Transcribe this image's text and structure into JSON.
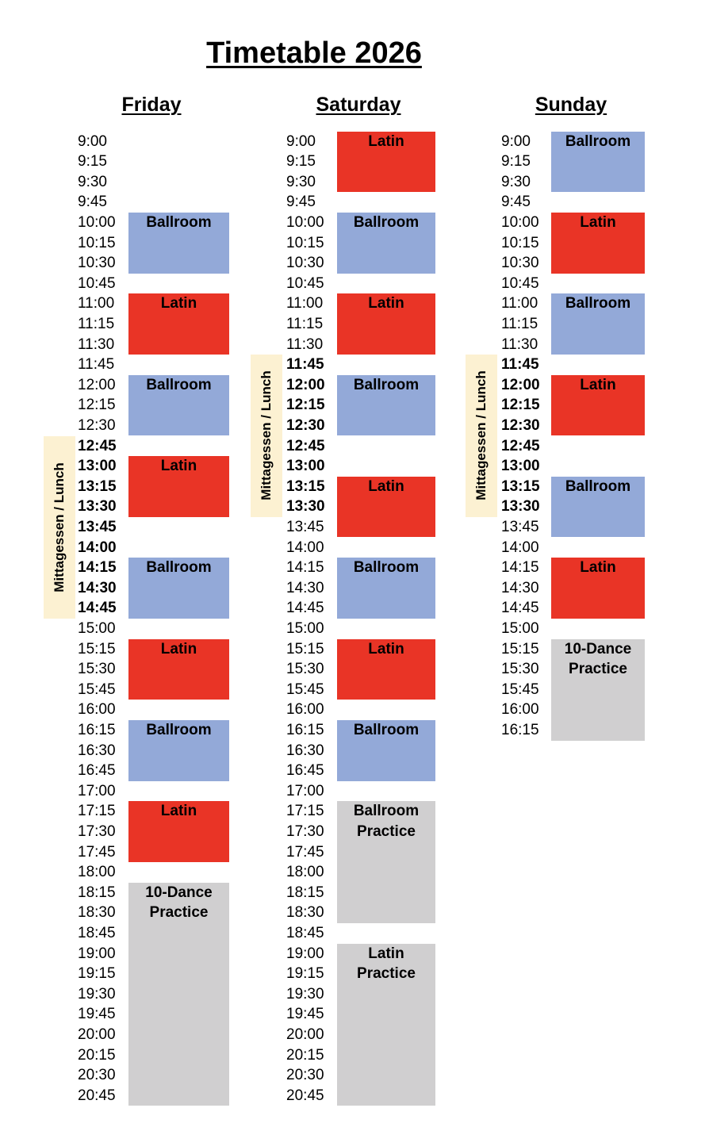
{
  "title": "Timetable 2026",
  "colors": {
    "ballroom": "#93a9d8",
    "latin": "#e93426",
    "practice": "#d0cfd0",
    "lunch": "#fcf1d2"
  },
  "days": [
    {
      "name": "Friday",
      "times": [
        "9:00",
        "9:15",
        "9:30",
        "9:45",
        "10:00",
        "10:15",
        "10:30",
        "10:45",
        "11:00",
        "11:15",
        "11:30",
        "11:45",
        "12:00",
        "12:15",
        "12:30",
        "12:45",
        "13:00",
        "13:15",
        "13:30",
        "13:45",
        "14:00",
        "14:15",
        "14:30",
        "14:45",
        "15:00",
        "15:15",
        "15:30",
        "15:45",
        "16:00",
        "16:15",
        "16:30",
        "16:45",
        "17:00",
        "17:15",
        "17:30",
        "17:45",
        "18:00",
        "18:15",
        "18:30",
        "18:45",
        "19:00",
        "19:15",
        "19:30",
        "19:45",
        "20:00",
        "20:15",
        "20:30",
        "20:45"
      ],
      "lunch": {
        "label": "Mittagessen / Lunch",
        "start": "12:45",
        "end": "14:45"
      },
      "blocks": [
        {
          "label": "Ballroom",
          "type": "ballroom",
          "start": "10:00",
          "end": "10:30"
        },
        {
          "label": "Latin",
          "type": "latin",
          "start": "11:00",
          "end": "11:30"
        },
        {
          "label": "Ballroom",
          "type": "ballroom",
          "start": "12:00",
          "end": "12:30"
        },
        {
          "label": "Latin",
          "type": "latin",
          "start": "13:00",
          "end": "13:30"
        },
        {
          "label": "Ballroom",
          "type": "ballroom",
          "start": "14:15",
          "end": "14:45"
        },
        {
          "label": "Latin",
          "type": "latin",
          "start": "15:15",
          "end": "15:45"
        },
        {
          "label": "Ballroom",
          "type": "ballroom",
          "start": "16:15",
          "end": "16:45"
        },
        {
          "label": "Latin",
          "type": "latin",
          "start": "17:15",
          "end": "17:45"
        },
        {
          "label": "10-Dance\nPractice",
          "type": "practice",
          "start": "18:15",
          "end": "20:45"
        }
      ]
    },
    {
      "name": "Saturday",
      "times": [
        "9:00",
        "9:15",
        "9:30",
        "9:45",
        "10:00",
        "10:15",
        "10:30",
        "10:45",
        "11:00",
        "11:15",
        "11:30",
        "11:45",
        "12:00",
        "12:15",
        "12:30",
        "12:45",
        "13:00",
        "13:15",
        "13:30",
        "13:45",
        "14:00",
        "14:15",
        "14:30",
        "14:45",
        "15:00",
        "15:15",
        "15:30",
        "15:45",
        "16:00",
        "16:15",
        "16:30",
        "16:45",
        "17:00",
        "17:15",
        "17:30",
        "17:45",
        "18:00",
        "18:15",
        "18:30",
        "18:45",
        "19:00",
        "19:15",
        "19:30",
        "19:45",
        "20:00",
        "20:15",
        "20:30",
        "20:45"
      ],
      "lunch": {
        "label": "Mittagessen / Lunch",
        "start": "11:45",
        "end": "13:30"
      },
      "blocks": [
        {
          "label": "Latin",
          "type": "latin",
          "start": "9:00",
          "end": "9:30"
        },
        {
          "label": "Ballroom",
          "type": "ballroom",
          "start": "10:00",
          "end": "10:30"
        },
        {
          "label": "Latin",
          "type": "latin",
          "start": "11:00",
          "end": "11:30"
        },
        {
          "label": "Ballroom",
          "type": "ballroom",
          "start": "12:00",
          "end": "12:30"
        },
        {
          "label": "Latin",
          "type": "latin",
          "start": "13:15",
          "end": "13:45"
        },
        {
          "label": "Ballroom",
          "type": "ballroom",
          "start": "14:15",
          "end": "14:45"
        },
        {
          "label": "Latin",
          "type": "latin",
          "start": "15:15",
          "end": "15:45"
        },
        {
          "label": "Ballroom",
          "type": "ballroom",
          "start": "16:15",
          "end": "16:45"
        },
        {
          "label": "Ballroom\nPractice",
          "type": "practice",
          "start": "17:15",
          "end": "18:30"
        },
        {
          "label": "Latin\nPractice",
          "type": "practice",
          "start": "19:00",
          "end": "20:45"
        }
      ]
    },
    {
      "name": "Sunday",
      "times": [
        "9:00",
        "9:15",
        "9:30",
        "9:45",
        "10:00",
        "10:15",
        "10:30",
        "10:45",
        "11:00",
        "11:15",
        "11:30",
        "11:45",
        "12:00",
        "12:15",
        "12:30",
        "12:45",
        "13:00",
        "13:15",
        "13:30",
        "13:45",
        "14:00",
        "14:15",
        "14:30",
        "14:45",
        "15:00",
        "15:15",
        "15:30",
        "15:45",
        "16:00",
        "16:15"
      ],
      "lunch": {
        "label": "Mittagessen / Lunch",
        "start": "11:45",
        "end": "13:30"
      },
      "blocks": [
        {
          "label": "Ballroom",
          "type": "ballroom",
          "start": "9:00",
          "end": "9:30"
        },
        {
          "label": "Latin",
          "type": "latin",
          "start": "10:00",
          "end": "10:30"
        },
        {
          "label": "Ballroom",
          "type": "ballroom",
          "start": "11:00",
          "end": "11:30"
        },
        {
          "label": "Latin",
          "type": "latin",
          "start": "12:00",
          "end": "12:30"
        },
        {
          "label": "Ballroom",
          "type": "ballroom",
          "start": "13:15",
          "end": "13:45"
        },
        {
          "label": "Latin",
          "type": "latin",
          "start": "14:15",
          "end": "14:45"
        },
        {
          "label": "10-Dance\nPractice",
          "type": "practice",
          "start": "15:15",
          "end": "16:15"
        }
      ]
    }
  ]
}
